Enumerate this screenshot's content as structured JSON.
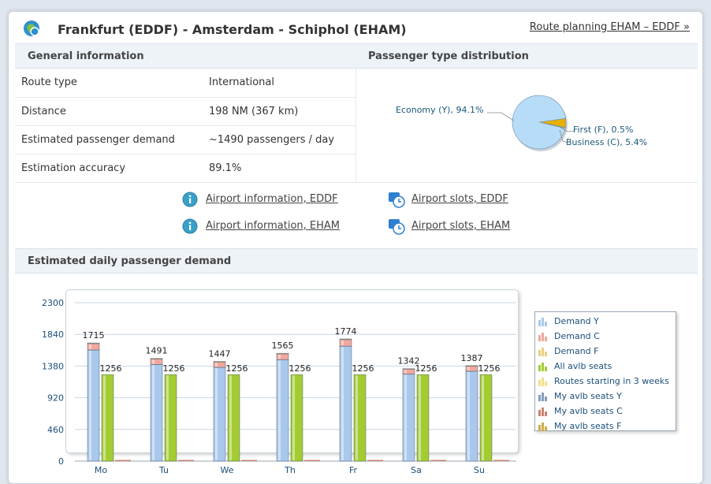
{
  "header": {
    "title": "Frankfurt (EDDF) - Amsterdam - Schiphol (EHAM)",
    "route_planning_link": "Route planning EHAM – EDDF »"
  },
  "general": {
    "heading": "General information",
    "rows": [
      {
        "label": "Route type",
        "value": "International"
      },
      {
        "label": "Distance",
        "value": "198 NM (367 km)"
      },
      {
        "label": "Estimated passenger demand",
        "value": "~1490 passengers / day"
      },
      {
        "label": "Estimation accuracy",
        "value": "89.1%"
      }
    ]
  },
  "distribution": {
    "heading": "Passenger type distribution",
    "slices": [
      {
        "label": "Economy (Y), 94.1%",
        "percent": 94.1,
        "color": "#b7dcf8"
      },
      {
        "label": "First (F), 0.5%",
        "percent": 0.5,
        "color": "#f0c24a"
      },
      {
        "label": "Business (C), 5.4%",
        "percent": 5.4,
        "color": "#e8b000"
      }
    ]
  },
  "links": {
    "airport_info_eddf": "Airport information, EDDF",
    "airport_info_eham": "Airport information, EHAM",
    "airport_slots_eddf": "Airport slots, EDDF",
    "airport_slots_eham": "Airport slots, EHAM"
  },
  "demand_section": {
    "heading": "Estimated daily passenger demand"
  },
  "chart_data": {
    "type": "bar",
    "categories": [
      "Mo",
      "Tu",
      "We",
      "Th",
      "Fr",
      "Sa",
      "Su"
    ],
    "y_ticks": [
      0,
      460,
      920,
      1380,
      1840,
      2300
    ],
    "ylim": [
      0,
      2300
    ],
    "series": [
      {
        "name": "Demand Y",
        "values": [
          1614,
          1403,
          1362,
          1473,
          1669,
          1263,
          1305
        ],
        "color": "#a9c8ec",
        "labeled": false
      },
      {
        "name": "Demand C",
        "values": [
          93,
          81,
          78,
          85,
          96,
          73,
          75
        ],
        "color": "#f1a89c",
        "labeled": false
      },
      {
        "name": "Demand F",
        "values": [
          8,
          7,
          7,
          7,
          9,
          6,
          7
        ],
        "color": "#e8d080",
        "labeled": false
      },
      {
        "name": "All avlb seats",
        "values": [
          1256,
          1256,
          1256,
          1256,
          1256,
          1256,
          1256
        ],
        "color": "#a3cc33",
        "labeled": true
      },
      {
        "name": "Routes starting in 3 weeks",
        "values": [
          0,
          0,
          0,
          0,
          0,
          0,
          0
        ],
        "color": "#f2e08a",
        "labeled": false
      },
      {
        "name": "My avlb seats Y",
        "values": [
          0,
          0,
          0,
          0,
          0,
          0,
          0
        ],
        "color": "#7f9dbf",
        "labeled": false
      },
      {
        "name": "My avlb seats C",
        "values": [
          0,
          0,
          0,
          0,
          0,
          0,
          0
        ],
        "color": "#c9826f",
        "labeled": false
      },
      {
        "name": "My avlb seats F",
        "values": [
          0,
          0,
          0,
          0,
          0,
          0,
          0
        ],
        "color": "#c9ad4a",
        "labeled": false
      }
    ],
    "total_labels": [
      1715,
      1491,
      1447,
      1565,
      1774,
      1342,
      1387
    ],
    "legend_position": "right"
  },
  "colors": {
    "accent": "#1a5a7a",
    "header_bg": "#eef3f8"
  }
}
